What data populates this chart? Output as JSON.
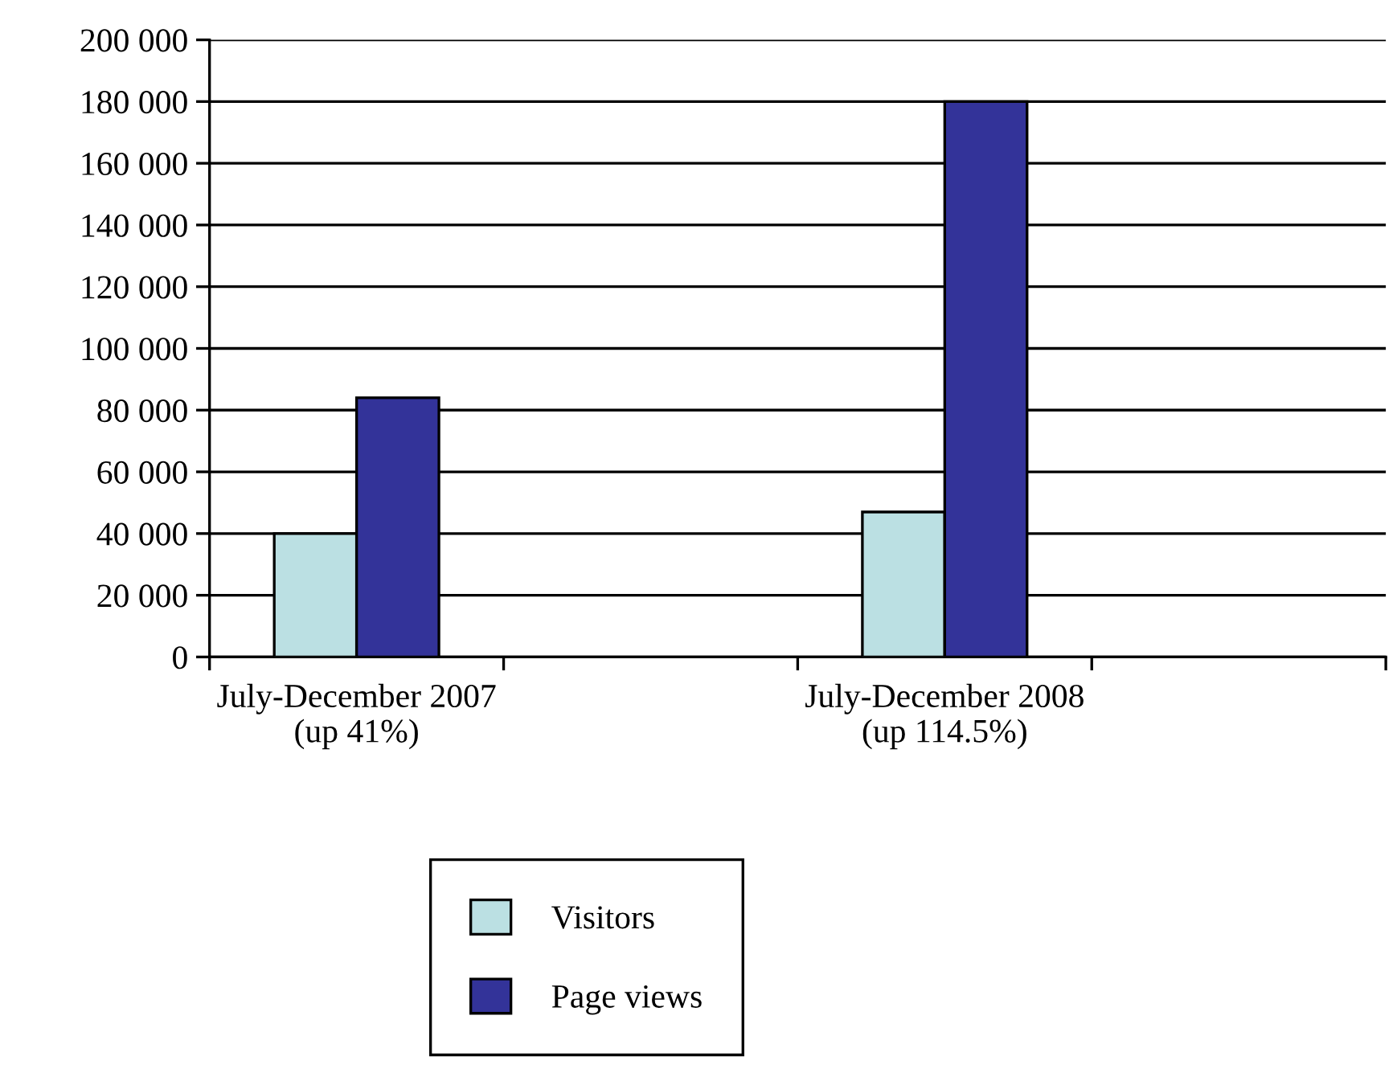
{
  "chart_data": {
    "type": "bar",
    "categories": [
      "July-December 2007\n(up 41%)",
      null,
      "July-December 2008\n(up 114.5%)",
      null
    ],
    "series": [
      {
        "name": "Visitors",
        "color": "#bbe0e3",
        "values": [
          40000,
          null,
          47000,
          null
        ]
      },
      {
        "name": "Page views",
        "color": "#333399",
        "values": [
          84000,
          null,
          180000,
          null
        ]
      }
    ],
    "ylim": [
      0,
      200000
    ],
    "yticks": [
      {
        "value": 0,
        "label": "0"
      },
      {
        "value": 20000,
        "label": "20 000"
      },
      {
        "value": 40000,
        "label": "40 000"
      },
      {
        "value": 60000,
        "label": "60 000"
      },
      {
        "value": 80000,
        "label": "80 000"
      },
      {
        "value": 100000,
        "label": "100 000"
      },
      {
        "value": 120000,
        "label": "120 000"
      },
      {
        "value": 140000,
        "label": "140 000"
      },
      {
        "value": 160000,
        "label": "160 000"
      },
      {
        "value": 180000,
        "label": "180 000"
      },
      {
        "value": 200000,
        "label": "200 000"
      }
    ],
    "grid": "y",
    "legend": "bottom"
  }
}
